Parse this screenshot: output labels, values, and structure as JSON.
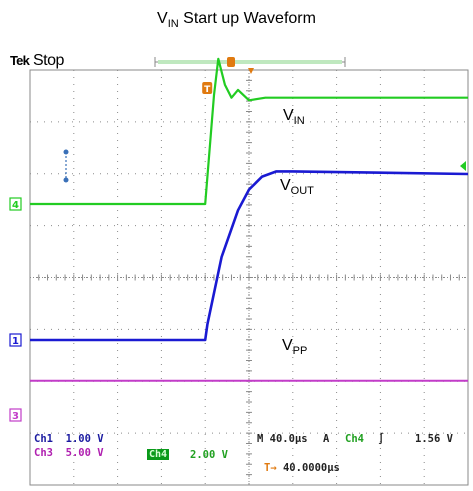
{
  "title": {
    "main": "V",
    "sub": "IN",
    "rest": " Start up Waveform"
  },
  "status": {
    "brand": "Tek",
    "state": "Stop"
  },
  "trace_labels": {
    "vin": {
      "main": "V",
      "sub": "IN"
    },
    "vout": {
      "main": "V",
      "sub": "OUT"
    },
    "vpp": {
      "main": "V",
      "sub": "PP"
    }
  },
  "channel_markers": {
    "ch1": "1",
    "ch3": "3",
    "ch4": "4",
    "trigger": "T"
  },
  "readouts": {
    "ch1": {
      "name": "Ch1",
      "scale": "1.00 V"
    },
    "ch3": {
      "name": "Ch3",
      "scale": "5.00 V"
    },
    "ch4": {
      "name": "Ch4",
      "scale": "2.00 V"
    },
    "timebase": "M 40.0µs",
    "trigger_mode": "A",
    "trigger_source": "Ch4",
    "trigger_slope": "∫",
    "trigger_level": "1.56 V",
    "trigger_position": "40.0000µs"
  },
  "colors": {
    "ch1": "#1a1ad2",
    "ch3": "#c23cc8",
    "ch4": "#22cc22",
    "trigger": "#e07a10",
    "grid": "#8a8a8a",
    "readout_ch1": "#1a1aa0",
    "readout_ch3": "#b020b0",
    "readout_ch4": "#20a020"
  },
  "chart_data": {
    "type": "line",
    "title": "VIN Start up Waveform",
    "x_unit": "µs",
    "x_per_division": 40,
    "x_divisions": 10,
    "y_divisions": 8,
    "grid": true,
    "series": [
      {
        "name": "VIN",
        "channel": "Ch4",
        "volts_per_division": 2.0,
        "x": [
          0,
          160,
          168,
          172,
          178,
          184,
          190,
          200,
          215,
          400
        ],
        "y": [
          0,
          0,
          4.2,
          5.6,
          4.6,
          4.1,
          4.4,
          4.0,
          4.1,
          4.1
        ]
      },
      {
        "name": "VOUT",
        "channel": "Ch1",
        "volts_per_division": 1.0,
        "x": [
          0,
          160,
          162,
          175,
          190,
          200,
          212,
          225,
          240,
          400
        ],
        "y": [
          0,
          0,
          0.3,
          1.6,
          2.5,
          2.9,
          3.15,
          3.25,
          3.25,
          3.2
        ]
      },
      {
        "name": "VPP",
        "channel": "Ch3",
        "volts_per_division": 5.0,
        "x": [
          0,
          400
        ],
        "y": [
          3.3,
          3.3
        ]
      }
    ]
  }
}
